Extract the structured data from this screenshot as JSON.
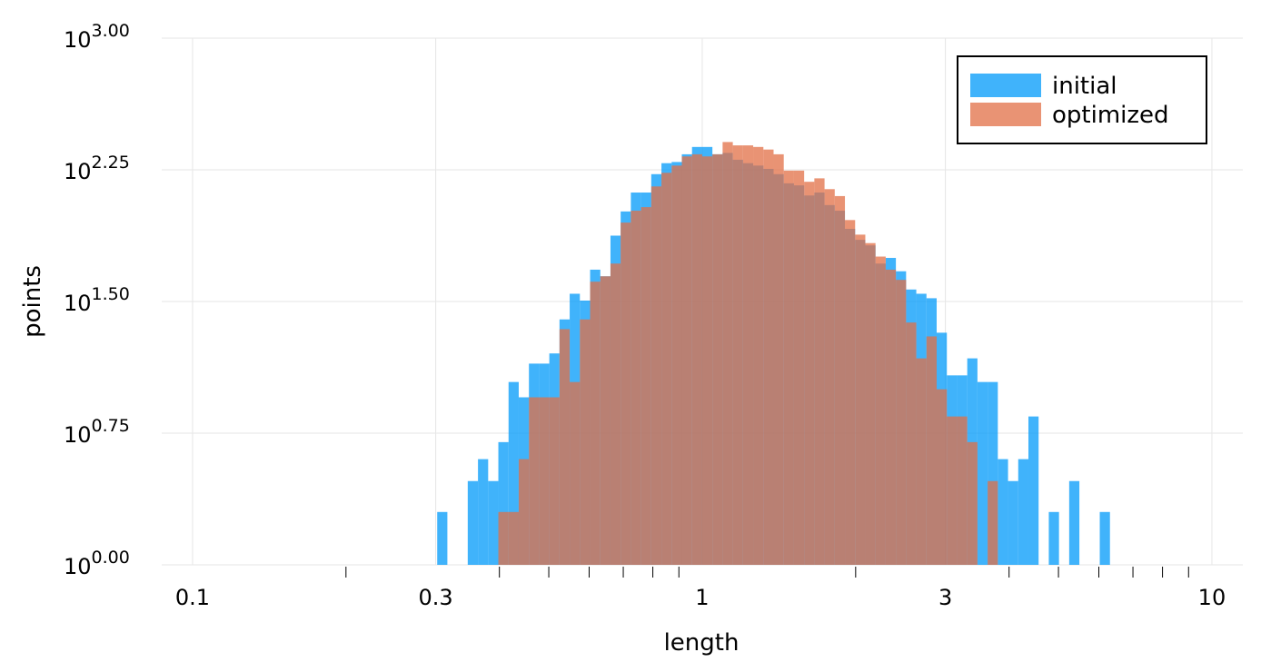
{
  "chart_data": {
    "type": "histogram",
    "x_label": "length",
    "y_label": "points",
    "xscale": "log",
    "yscale": "log",
    "grid": true,
    "legend": "top-right",
    "xlim": [
      0.087,
      11.5
    ],
    "xticks": [
      0.1,
      0.3,
      1,
      3,
      10
    ],
    "xminorticks": [
      0.2,
      0.4,
      0.5,
      0.6,
      0.7,
      0.8,
      0.9,
      2,
      4,
      5,
      6,
      7,
      8,
      9
    ],
    "ylim": [
      1,
      1000
    ],
    "yticks": [
      {
        "value": 1,
        "label": "10",
        "exponent": "0.00"
      },
      {
        "value": 5.623,
        "label": "10",
        "exponent": "0.75"
      },
      {
        "value": 31.62,
        "label": "10",
        "exponent": "1.50"
      },
      {
        "value": 177.8,
        "label": "10",
        "exponent": "2.25"
      },
      {
        "value": 1000,
        "label": "10",
        "exponent": "3.00"
      }
    ],
    "bins": [
      0.302,
      0.3162,
      0.3311,
      0.3467,
      0.3631,
      0.3802,
      0.3981,
      0.4169,
      0.4365,
      0.4571,
      0.4786,
      0.5012,
      0.5248,
      0.5495,
      0.5754,
      0.6026,
      0.631,
      0.6607,
      0.6918,
      0.7244,
      0.7586,
      0.7943,
      0.8318,
      0.871,
      0.912,
      0.955,
      1.0,
      1.0471,
      1.0965,
      1.1482,
      1.2023,
      1.2589,
      1.3183,
      1.3804,
      1.4454,
      1.5136,
      1.5849,
      1.6596,
      1.7378,
      1.8197,
      1.9055,
      1.9953,
      2.0893,
      2.1878,
      2.2909,
      2.3988,
      2.5119,
      2.6303,
      2.7542,
      2.884,
      3.02,
      3.1623,
      3.3113,
      3.4674,
      3.6308,
      3.8019,
      3.9811,
      4.1687,
      4.3652,
      4.5709,
      4.7863,
      5.0119,
      5.2481,
      5.4954,
      5.7544,
      6.0256,
      6.3096
    ],
    "series": [
      {
        "name": "initial",
        "color": "#009af9",
        "values": [
          2,
          0,
          0,
          3,
          4,
          3,
          5,
          11,
          9,
          14,
          14,
          16,
          25,
          35,
          32,
          48,
          44,
          75,
          103,
          132,
          132,
          168,
          194,
          197,
          218,
          240,
          240,
          218,
          222,
          203,
          194,
          188,
          180,
          168,
          149,
          145,
          127,
          132,
          112,
          104,
          82,
          71,
          66,
          52,
          56,
          47,
          37,
          35,
          33,
          21,
          12,
          12,
          15,
          11,
          11,
          4,
          3,
          4,
          7,
          0,
          2,
          0,
          3,
          0,
          0,
          2
        ]
      },
      {
        "name": "optimized",
        "color": "#e26f46",
        "values": [
          0,
          0,
          0,
          0,
          0,
          0,
          2,
          2,
          4,
          9,
          9,
          9,
          22,
          11,
          25,
          41,
          44,
          52,
          89,
          104,
          109,
          143,
          171,
          188,
          212,
          218,
          212,
          218,
          256,
          245,
          245,
          240,
          232,
          218,
          176,
          176,
          152,
          159,
          138,
          126,
          92,
          76,
          68,
          57,
          48,
          42,
          24,
          15,
          20,
          10,
          7,
          7,
          5,
          0,
          3,
          0,
          0,
          0,
          0,
          0,
          0,
          0,
          0,
          0,
          0,
          0
        ]
      }
    ]
  }
}
